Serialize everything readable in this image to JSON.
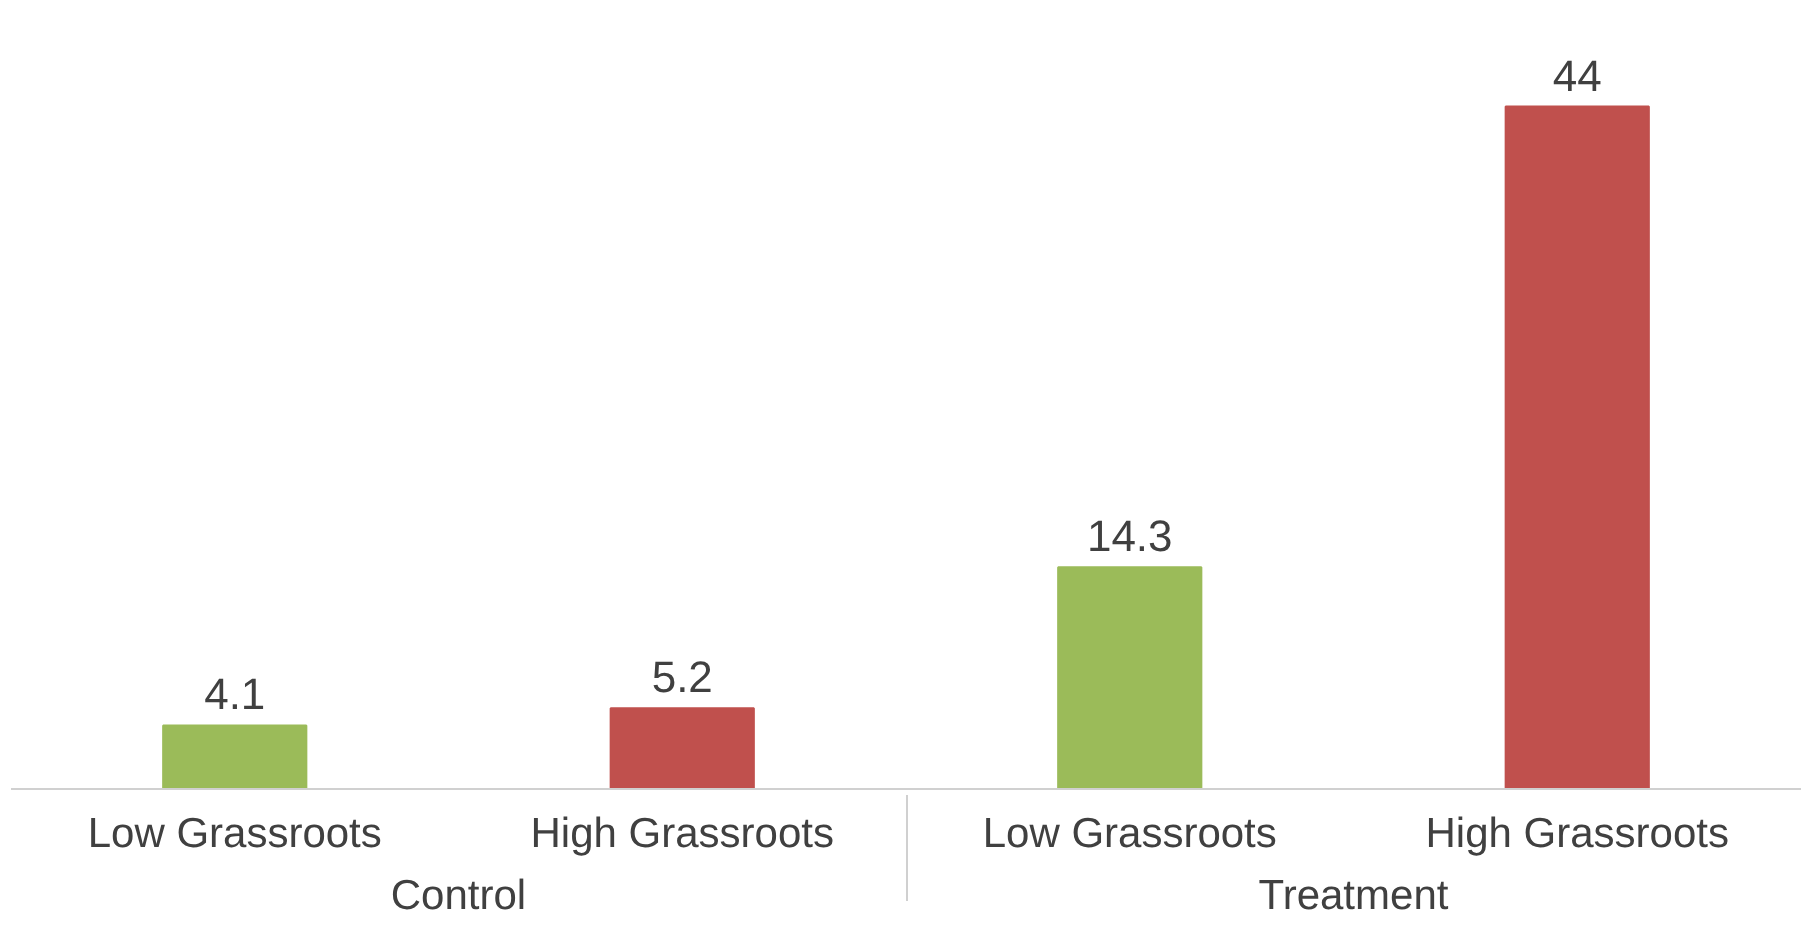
{
  "chart_data": {
    "type": "bar",
    "categories": [
      "Control",
      "Treatment"
    ],
    "series": [
      {
        "name": "Low Grassroots",
        "color": "#9bbb59",
        "values": [
          4.1,
          14.3
        ]
      },
      {
        "name": "High Grassroots",
        "color": "#c0504d",
        "values": [
          5.2,
          44
        ]
      }
    ],
    "data_labels": true,
    "grid": false
  }
}
